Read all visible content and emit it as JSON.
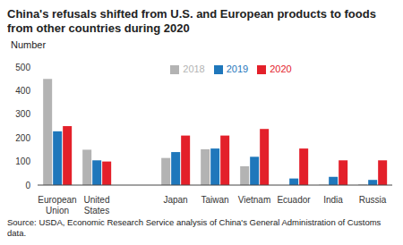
{
  "chart_data": {
    "type": "bar",
    "title": "China's refusals shifted from U.S. and European products to foods from other countries during 2020",
    "y_label": "Number",
    "source": "Source: USDA, Economic Research Service analysis of China's General Administration of Customs data.",
    "categories": [
      "European Union",
      "United States",
      null,
      "Japan",
      "Taiwan",
      "Vietnam",
      "Ecuador",
      "India",
      "Russia"
    ],
    "series": [
      {
        "name": "2018",
        "color": "#b3b3b3",
        "values": [
          450,
          150,
          null,
          115,
          152,
          80,
          0,
          2,
          3
        ]
      },
      {
        "name": "2019",
        "color": "#1f77bb",
        "values": [
          228,
          105,
          null,
          140,
          155,
          120,
          28,
          35,
          22
        ]
      },
      {
        "name": "2020",
        "color": "#e3202a",
        "values": [
          250,
          100,
          null,
          210,
          210,
          238,
          155,
          105,
          105
        ]
      }
    ],
    "ylim": [
      0,
      500
    ],
    "yticks": [
      0,
      100,
      200,
      300,
      400,
      500
    ],
    "grid": false,
    "legend": "top"
  }
}
